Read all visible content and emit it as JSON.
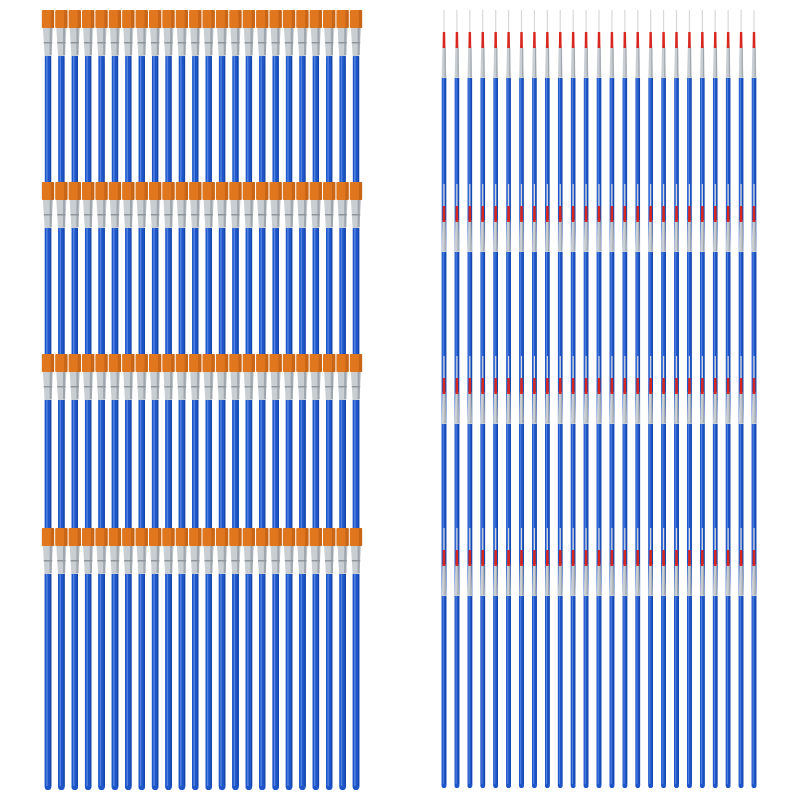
{
  "photo": {
    "subject": "product-photo",
    "background_color": "#ffffff",
    "left_group": {
      "brush_type": "flat",
      "rows": 4,
      "brushes_per_row": 24,
      "bristle_color": "#e0761e",
      "bristle_shadow_color": "#b85a12",
      "ferrule_color": "#c9ced3",
      "ferrule_shadow_color": "#8e959c",
      "handle_color": "#1e56c9",
      "handle_highlight_color": "#5f8fe8",
      "handle_shadow_color": "#0f3a92"
    },
    "right_group": {
      "brush_type": "round-liner",
      "rows": 4,
      "brushes_per_row": 25,
      "bristle_color": "#d8d8d8",
      "tip_color": "#d8271f",
      "ferrule_color": "#c9ced3",
      "ferrule_shadow_color": "#8e959c",
      "handle_color": "#1e56c9",
      "handle_highlight_color": "#5f8fe8",
      "handle_shadow_color": "#0f3a92"
    }
  }
}
